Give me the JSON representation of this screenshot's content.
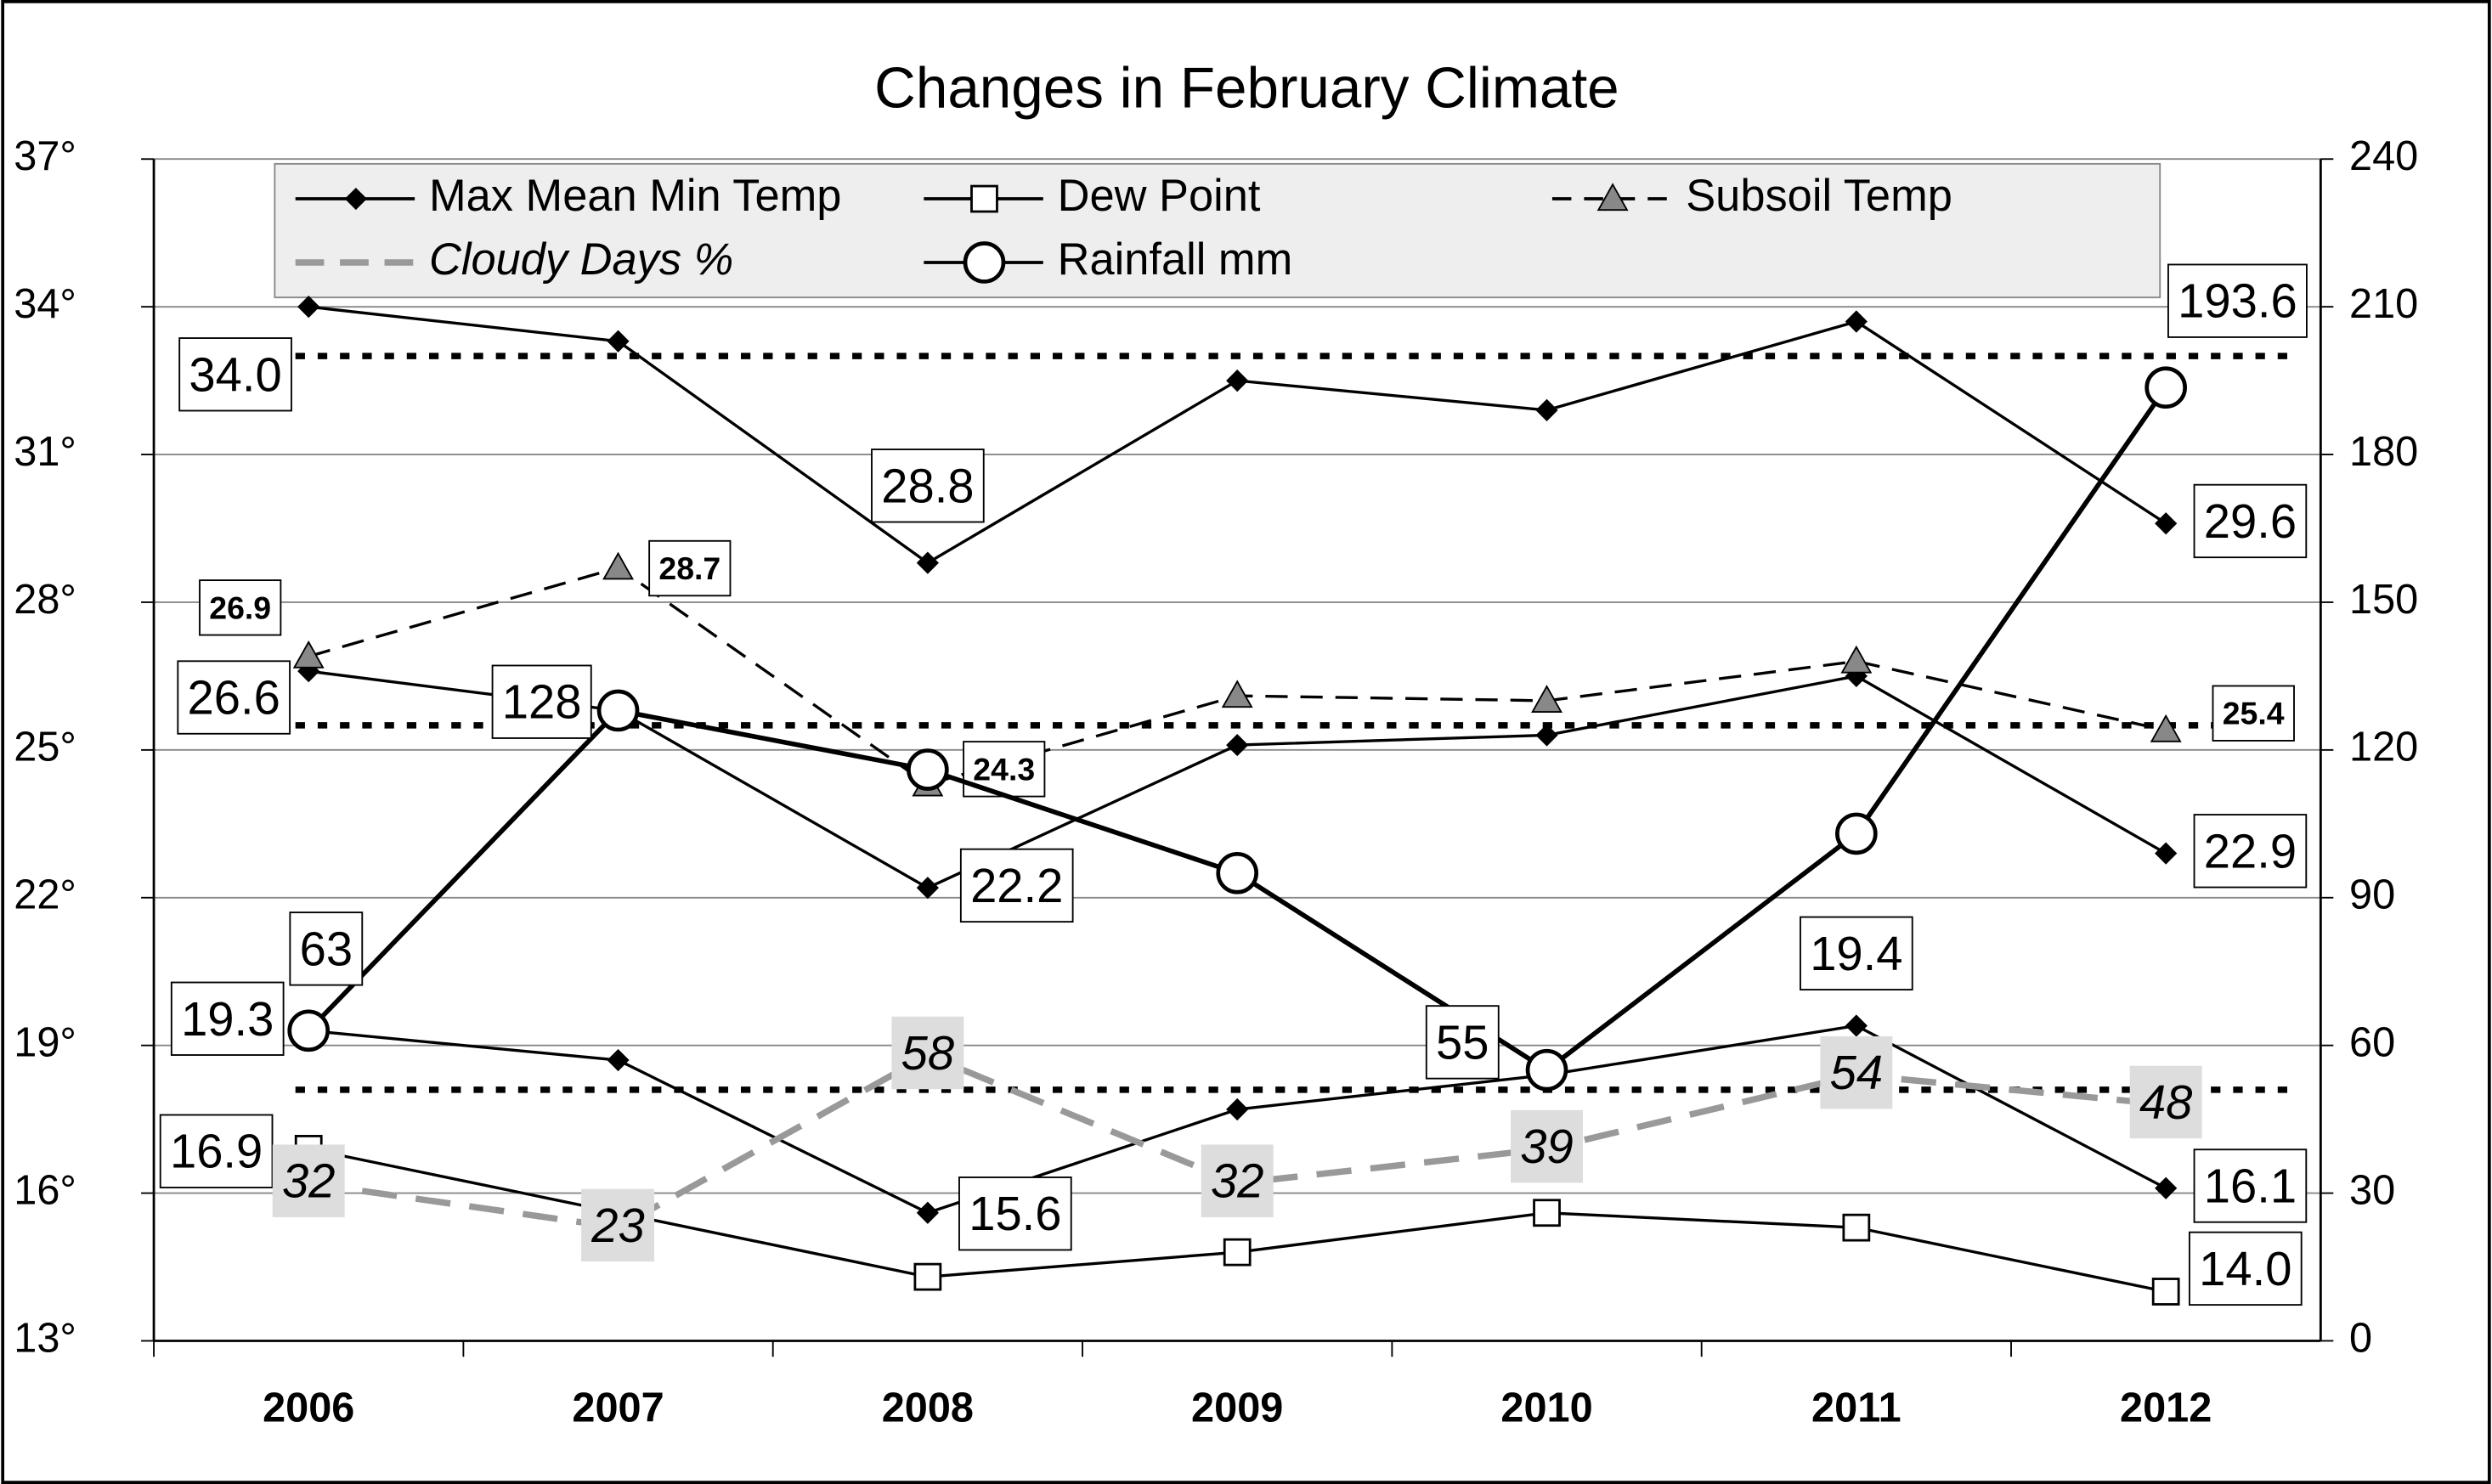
{
  "chart_data": {
    "type": "line",
    "title": "Changes in February Climate",
    "categories": [
      "2006",
      "2007",
      "2008",
      "2009",
      "2010",
      "2011",
      "2012"
    ],
    "ylim": [
      13,
      37
    ],
    "yticks": [
      {
        "value": 13,
        "label": "13°"
      },
      {
        "value": 16,
        "label": "16°"
      },
      {
        "value": 19,
        "label": "19°"
      },
      {
        "value": 22,
        "label": "22°"
      },
      {
        "value": 25,
        "label": "25°"
      },
      {
        "value": 28,
        "label": "28°"
      },
      {
        "value": 31,
        "label": "31°"
      },
      {
        "value": 34,
        "label": "34°"
      },
      {
        "value": 37,
        "label": "37°"
      }
    ],
    "y2lim": [
      0,
      240
    ],
    "y2ticks": [
      0,
      30,
      60,
      90,
      120,
      150,
      180,
      210,
      240
    ],
    "grid": true,
    "reference_lines": [
      33.0,
      25.5,
      18.1
    ],
    "series": [
      {
        "name": "Max Mean Min Temp",
        "color": "#000000",
        "marker": "diamond",
        "lines": [
          {
            "values": [
              34.0,
              33.3,
              28.8,
              32.5,
              31.9,
              33.7,
              29.6
            ],
            "value_labels": [
              "34.0",
              null,
              "28.8",
              null,
              null,
              null,
              "29.6"
            ]
          },
          {
            "values": [
              26.6,
              25.8,
              22.2,
              25.1,
              25.3,
              26.5,
              22.9
            ],
            "value_labels": [
              "26.6",
              null,
              "22.2",
              null,
              null,
              null,
              "22.9"
            ]
          },
          {
            "values": [
              19.3,
              18.7,
              15.6,
              17.7,
              18.4,
              19.4,
              16.1
            ],
            "value_labels": [
              "19.3",
              null,
              "15.6",
              null,
              null,
              "19.4",
              "16.1"
            ]
          }
        ]
      },
      {
        "name": "Dew Point",
        "color": "#000000",
        "marker": "square",
        "values": [
          16.9,
          15.6,
          14.3,
          14.8,
          15.6,
          15.3,
          14.0
        ],
        "value_labels": [
          "16.9",
          null,
          null,
          null,
          null,
          null,
          "14.0"
        ]
      },
      {
        "name": "Subsoil Temp",
        "color": "#000000",
        "marker": "triangle",
        "dash": true,
        "values": [
          26.9,
          28.7,
          24.3,
          26.1,
          26.0,
          26.8,
          25.4
        ],
        "value_labels": [
          "26.9",
          "28.7",
          "24.3",
          null,
          null,
          null,
          "25.4"
        ]
      },
      {
        "name": "Cloudy Days %",
        "color": "#999999",
        "axis": "y2",
        "dash": true,
        "values": [
          32,
          23,
          58,
          32,
          39,
          54,
          48
        ]
      },
      {
        "name": "Rainfall mm",
        "color": "#000000",
        "axis": "y2",
        "marker": "circle",
        "values": [
          63,
          128,
          116,
          95,
          55,
          103,
          193.6
        ],
        "value_labels": [
          "63",
          "128",
          null,
          null,
          "55",
          null,
          "193.6"
        ]
      }
    ]
  }
}
